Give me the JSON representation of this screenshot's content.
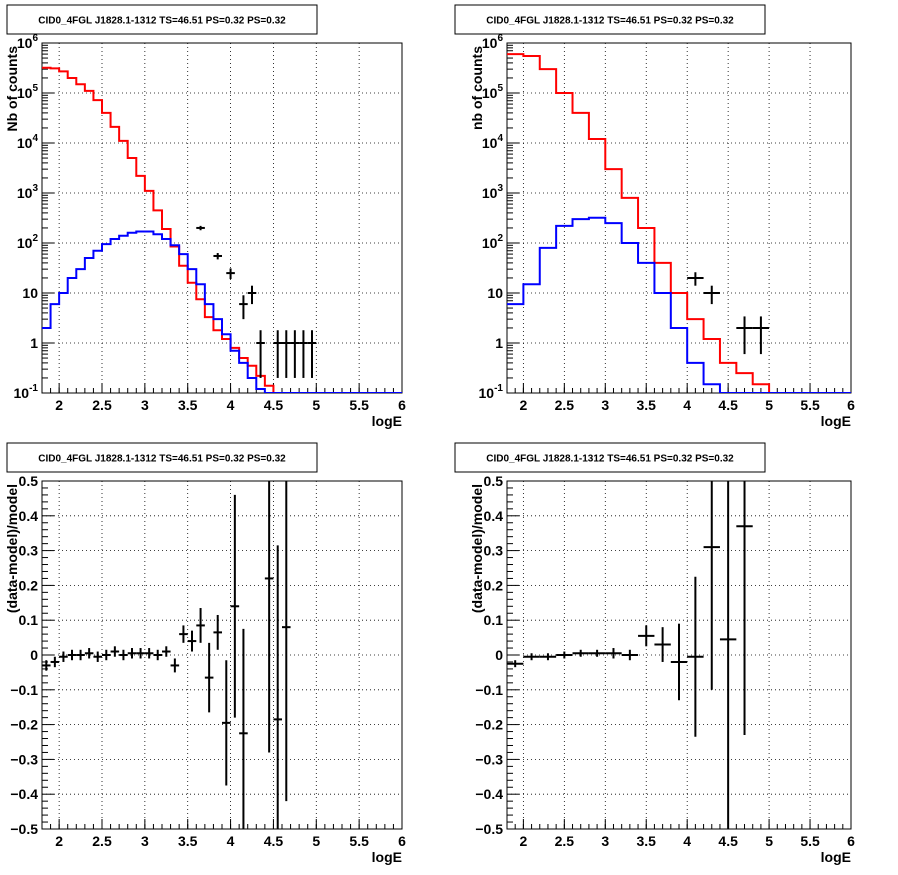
{
  "chart_data": [
    {
      "type": "histogram",
      "title": "CID0_4FGL J1828.1-1312 TS=46.51 PS=0.32 PS=0.32",
      "xlabel": "logE",
      "ylabel": "Nb of counts",
      "yscale": "log",
      "xlim": [
        1.8,
        6.0
      ],
      "ylim": [
        0.1,
        1000000
      ],
      "grid": true,
      "xticks": [
        "2",
        "2.5",
        "3",
        "3.5",
        "4",
        "4.5",
        "5",
        "5.5",
        "6"
      ],
      "yticks": [
        "10^-1",
        "1",
        "10",
        "10^2",
        "10^3",
        "10^4",
        "10^5",
        "10^6"
      ],
      "bin_edges": [
        1.8,
        1.9,
        2.0,
        2.1,
        2.2,
        2.3,
        2.4,
        2.5,
        2.6,
        2.7,
        2.8,
        2.9,
        3.0,
        3.1,
        3.2,
        3.3,
        3.4,
        3.5,
        3.6,
        3.7,
        3.8,
        3.9,
        4.0,
        4.1,
        4.2,
        4.3,
        4.4,
        4.5,
        4.6,
        4.7,
        4.8,
        4.9,
        5.0,
        5.1,
        5.2,
        5.3,
        5.4,
        5.5,
        5.6,
        5.7,
        5.8,
        5.9,
        6.0
      ],
      "series": [
        {
          "style": "red",
          "color": "#ff0000",
          "values": [
            320000,
            310000,
            270000,
            200000,
            150000,
            110000,
            72000,
            40000,
            21000,
            11000,
            5000,
            2200,
            1100,
            450,
            190,
            85,
            35,
            16,
            7.5,
            3.3,
            1.8,
            1.2,
            0.8,
            0.5,
            0.35,
            0.22,
            0.14,
            0.1,
            0.1,
            0.1,
            0.1,
            0.1,
            0.1,
            0.1,
            0.1,
            0.1,
            0.1,
            0.1,
            0.1,
            0.1,
            0.1,
            0.1
          ]
        },
        {
          "style": "blue",
          "color": "#0000ff",
          "values": [
            2,
            6,
            10,
            20,
            30,
            50,
            70,
            95,
            120,
            140,
            160,
            170,
            170,
            150,
            120,
            90,
            60,
            30,
            15,
            6,
            3,
            1.5,
            0.7,
            0.4,
            0.2,
            0.12,
            0.1,
            0.1,
            0.1,
            0.1,
            0.1,
            0.1,
            0.1,
            0.1,
            0.1,
            0.1,
            0.1,
            0.1,
            0.1,
            0.1,
            0.1,
            0.1
          ]
        },
        {
          "style": "data",
          "color": "#000000",
          "points": [
            [
              3.65,
              200,
              20,
              0.05
            ],
            [
              3.85,
              55,
              8,
              0.05
            ],
            [
              4.0,
              25,
              6,
              0.05
            ],
            [
              4.15,
              6,
              3,
              0.05
            ],
            [
              4.25,
              10,
              4,
              0.05
            ],
            [
              4.35,
              1,
              0.8,
              0.05
            ],
            [
              4.55,
              1,
              0.8,
              0.05
            ],
            [
              4.65,
              1,
              0.8,
              0.05
            ],
            [
              4.75,
              1,
              0.8,
              0.05
            ],
            [
              4.85,
              1,
              0.8,
              0.05
            ],
            [
              4.95,
              1,
              0.8,
              0.05
            ]
          ]
        }
      ]
    },
    {
      "type": "histogram",
      "title": "CID0_4FGL J1828.1-1312 TS=46.51 PS=0.32 PS=0.32",
      "xlabel": "logE",
      "ylabel": "nb of counts",
      "yscale": "log",
      "xlim": [
        1.8,
        6.0
      ],
      "ylim": [
        0.1,
        1000000
      ],
      "grid": true,
      "xticks": [
        "2",
        "2.5",
        "3",
        "3.5",
        "4",
        "4.5",
        "5",
        "5.5",
        "6"
      ],
      "yticks": [
        "10^-1",
        "1",
        "10",
        "10^2",
        "10^3",
        "10^4",
        "10^5",
        "10^6"
      ],
      "bin_edges": [
        1.8,
        2.0,
        2.2,
        2.4,
        2.6,
        2.8,
        3.0,
        3.2,
        3.4,
        3.6,
        3.8,
        4.0,
        4.2,
        4.4,
        4.6,
        4.8,
        5.0,
        5.2,
        5.4,
        5.6,
        5.8,
        6.0
      ],
      "series": [
        {
          "style": "red",
          "color": "#ff0000",
          "values": [
            600000,
            550000,
            300000,
            100000,
            40000,
            12000,
            3000,
            800,
            200,
            40,
            10,
            3,
            1.2,
            0.4,
            0.25,
            0.15,
            0.1,
            0.1,
            0.1,
            0.1,
            0.1
          ]
        },
        {
          "style": "blue",
          "color": "#0000ff",
          "values": [
            6,
            15,
            80,
            220,
            300,
            320,
            250,
            100,
            40,
            10,
            2,
            0.4,
            0.15,
            0.1,
            0.1,
            0.1,
            0.1,
            0.1,
            0.1,
            0.1,
            0.1
          ]
        },
        {
          "style": "data",
          "color": "#000000",
          "points": [
            [
              4.1,
              20,
              6,
              0.1
            ],
            [
              4.3,
              10,
              4,
              0.1
            ],
            [
              4.7,
              2,
              1.4,
              0.1
            ],
            [
              4.9,
              2,
              1.4,
              0.1
            ]
          ]
        }
      ]
    },
    {
      "type": "scatter",
      "title": "CID0_4FGL J1828.1-1312 TS=46.51 PS=0.32 PS=0.32",
      "xlabel": "logE",
      "ylabel": "(data-model)/model",
      "xlim": [
        1.8,
        6.0
      ],
      "ylim": [
        -0.5,
        0.5
      ],
      "grid": true,
      "xticks": [
        "2",
        "2.5",
        "3",
        "3.5",
        "4",
        "4.5",
        "5",
        "5.5",
        "6"
      ],
      "yticks": [
        "−0.5",
        "−0.4",
        "−0.3",
        "−0.2",
        "−0.1",
        "0",
        "0.1",
        "0.2",
        "0.3",
        "0.4",
        "0.5"
      ],
      "series": [
        {
          "style": "data",
          "color": "#000000",
          "points": [
            [
              1.85,
              -0.03,
              0.015,
              0.05
            ],
            [
              1.95,
              -0.02,
              0.015,
              0.05
            ],
            [
              2.05,
              -0.005,
              0.015,
              0.05
            ],
            [
              2.15,
              0.0,
              0.015,
              0.05
            ],
            [
              2.25,
              0.0,
              0.015,
              0.05
            ],
            [
              2.35,
              0.005,
              0.015,
              0.05
            ],
            [
              2.45,
              -0.005,
              0.015,
              0.05
            ],
            [
              2.55,
              0.0,
              0.015,
              0.05
            ],
            [
              2.65,
              0.01,
              0.015,
              0.05
            ],
            [
              2.75,
              0.0,
              0.015,
              0.05
            ],
            [
              2.85,
              0.005,
              0.015,
              0.05
            ],
            [
              2.95,
              0.005,
              0.015,
              0.05
            ],
            [
              3.05,
              0.005,
              0.015,
              0.05
            ],
            [
              3.15,
              0.0,
              0.015,
              0.05
            ],
            [
              3.25,
              0.01,
              0.015,
              0.05
            ],
            [
              3.35,
              -0.03,
              0.02,
              0.05
            ],
            [
              3.45,
              0.06,
              0.025,
              0.05
            ],
            [
              3.55,
              0.04,
              0.03,
              0.05
            ],
            [
              3.65,
              0.085,
              0.05,
              0.05
            ],
            [
              3.75,
              -0.065,
              0.1,
              0.05
            ],
            [
              3.85,
              0.065,
              0.05,
              0.05
            ],
            [
              3.95,
              -0.195,
              0.18,
              0.05
            ],
            [
              4.05,
              0.14,
              0.32,
              0.05
            ],
            [
              4.15,
              -0.225,
              0.3,
              0.05
            ],
            [
              4.45,
              0.22,
              0.5,
              0.05
            ],
            [
              4.55,
              -0.185,
              0.5,
              0.05
            ],
            [
              4.65,
              0.08,
              0.5,
              0.05
            ]
          ]
        }
      ]
    },
    {
      "type": "scatter",
      "title": "CID0_4FGL J1828.1-1312 TS=46.51 PS=0.32 PS=0.32",
      "xlabel": "logE",
      "ylabel": "(data-model)/model",
      "xlim": [
        1.8,
        6.0
      ],
      "ylim": [
        -0.5,
        0.5
      ],
      "grid": true,
      "xticks": [
        "2",
        "2.5",
        "3",
        "3.5",
        "4",
        "4.5",
        "5",
        "5.5",
        "6"
      ],
      "yticks": [
        "−0.5",
        "−0.4",
        "−0.3",
        "−0.2",
        "−0.1",
        "0",
        "0.1",
        "0.2",
        "0.3",
        "0.4",
        "0.5"
      ],
      "series": [
        {
          "style": "data",
          "color": "#000000",
          "points": [
            [
              1.9,
              -0.025,
              0.01,
              0.1
            ],
            [
              2.1,
              -0.005,
              0.01,
              0.1
            ],
            [
              2.3,
              -0.005,
              0.01,
              0.1
            ],
            [
              2.5,
              0.0,
              0.01,
              0.1
            ],
            [
              2.7,
              0.005,
              0.01,
              0.1
            ],
            [
              2.9,
              0.005,
              0.01,
              0.1
            ],
            [
              3.1,
              0.005,
              0.015,
              0.1
            ],
            [
              3.3,
              0.0,
              0.015,
              0.1
            ],
            [
              3.5,
              0.055,
              0.03,
              0.1
            ],
            [
              3.7,
              0.03,
              0.05,
              0.1
            ],
            [
              3.9,
              -0.02,
              0.11,
              0.1
            ],
            [
              4.1,
              -0.005,
              0.23,
              0.1
            ],
            [
              4.3,
              0.31,
              0.41,
              0.1
            ],
            [
              4.5,
              0.045,
              0.6,
              0.1
            ],
            [
              4.7,
              0.37,
              0.6,
              0.1
            ]
          ]
        }
      ]
    }
  ]
}
